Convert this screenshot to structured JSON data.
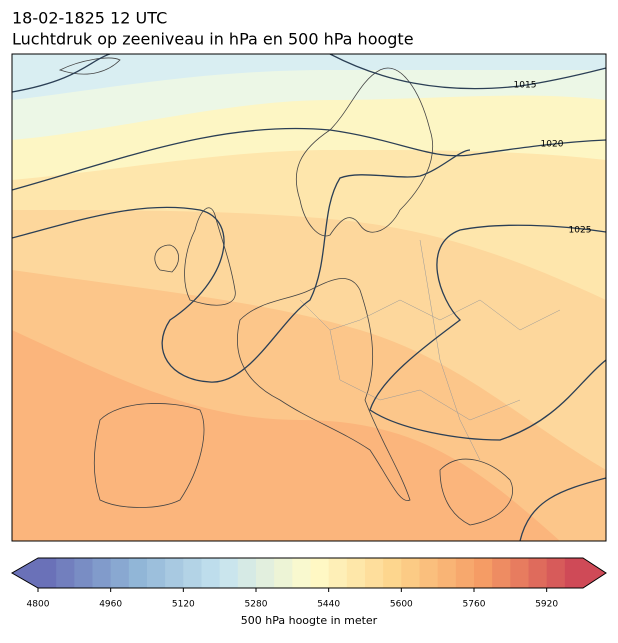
{
  "header": {
    "title": "18-02-1825 12 UTC",
    "subtitle": "Luchtdruk op zeeniveau in hPa en 500 hPa hoogte"
  },
  "map": {
    "isobar_labels": [
      "1015",
      "1020",
      "1025"
    ]
  },
  "colorbar": {
    "label": "500 hPa hoogte in meter",
    "lim": [
      4800,
      6000
    ],
    "step": 40,
    "ticks": [
      4800,
      4960,
      5120,
      5280,
      5440,
      5600,
      5760,
      5920
    ]
  }
}
